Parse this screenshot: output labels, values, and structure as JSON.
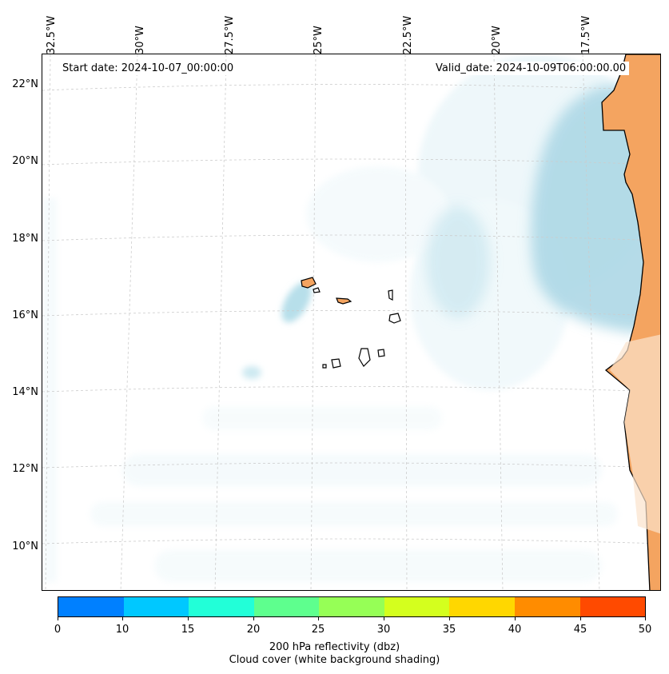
{
  "map": {
    "start_date": "Start date: 2024-10-07_00:00:00",
    "valid_date": "Valid_date: 2024-10-09T06:00:00.00",
    "lon_labels": [
      "32.5°W",
      "30°W",
      "27.5°W",
      "25°W",
      "22.5°W",
      "20°W",
      "17.5°W"
    ],
    "lat_labels": [
      "22°N",
      "20°N",
      "18°N",
      "16°N",
      "14°N",
      "12°N",
      "10°N"
    ],
    "land_color": "#f4a460",
    "cloud_color": "#add8e6"
  },
  "colorbar": {
    "ticks": [
      "0",
      "10",
      "15",
      "20",
      "25",
      "30",
      "35",
      "40",
      "45",
      "50"
    ],
    "colors": [
      "#0080ff",
      "#00c8ff",
      "#22ffd8",
      "#5eff8e",
      "#96ff56",
      "#d4ff1e",
      "#ffd700",
      "#ff8c00",
      "#ff4a00"
    ],
    "label_line1": "200 hPa reflectivity (dbz)",
    "label_line2": "Cloud cover (white background shading)"
  }
}
